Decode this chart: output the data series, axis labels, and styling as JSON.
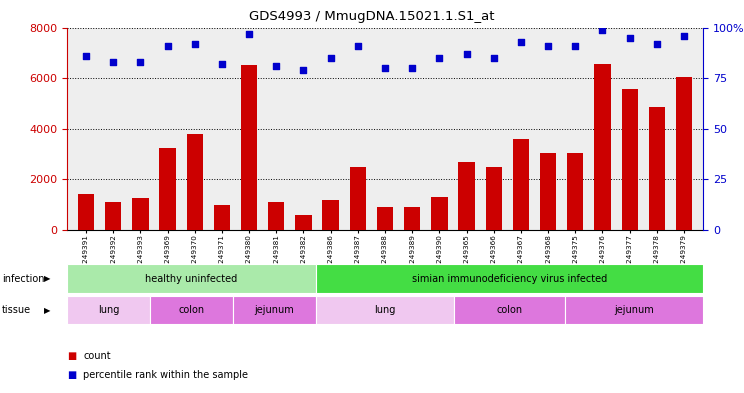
{
  "title": "GDS4993 / MmugDNA.15021.1.S1_at",
  "samples": [
    "GSM1249391",
    "GSM1249392",
    "GSM1249393",
    "GSM1249369",
    "GSM1249370",
    "GSM1249371",
    "GSM1249380",
    "GSM1249381",
    "GSM1249382",
    "GSM1249386",
    "GSM1249387",
    "GSM1249388",
    "GSM1249389",
    "GSM1249390",
    "GSM1249365",
    "GSM1249366",
    "GSM1249367",
    "GSM1249368",
    "GSM1249375",
    "GSM1249376",
    "GSM1249377",
    "GSM1249378",
    "GSM1249379"
  ],
  "counts": [
    1400,
    1100,
    1250,
    3250,
    3800,
    1000,
    6500,
    1100,
    600,
    1200,
    2500,
    900,
    900,
    1300,
    2700,
    2500,
    3600,
    3050,
    3050,
    6550,
    5550,
    4850,
    6050
  ],
  "percentile_ranks": [
    86,
    83,
    83,
    91,
    92,
    82,
    97,
    81,
    79,
    85,
    91,
    80,
    80,
    85,
    87,
    85,
    93,
    91,
    91,
    99,
    95,
    92,
    96
  ],
  "bar_color": "#cc0000",
  "dot_color": "#0000cc",
  "ylim_left": [
    0,
    8000
  ],
  "ylim_right": [
    0,
    100
  ],
  "yticks_left": [
    0,
    2000,
    4000,
    6000,
    8000
  ],
  "yticks_right": [
    0,
    25,
    50,
    75,
    100
  ],
  "infection_groups": [
    {
      "label": "healthy uninfected",
      "start": 0,
      "end": 9,
      "color": "#aaeaaa"
    },
    {
      "label": "simian immunodeficiency virus infected",
      "start": 9,
      "end": 23,
      "color": "#44dd44"
    }
  ],
  "tissue_groups": [
    {
      "label": "lung",
      "start": 0,
      "end": 3,
      "color": "#f0c8f0"
    },
    {
      "label": "colon",
      "start": 3,
      "end": 6,
      "color": "#dd77dd"
    },
    {
      "label": "jejunum",
      "start": 6,
      "end": 9,
      "color": "#dd77dd"
    },
    {
      "label": "lung",
      "start": 9,
      "end": 14,
      "color": "#f0c8f0"
    },
    {
      "label": "colon",
      "start": 14,
      "end": 18,
      "color": "#dd77dd"
    },
    {
      "label": "jejunum",
      "start": 18,
      "end": 23,
      "color": "#dd77dd"
    }
  ],
  "legend_items": [
    {
      "label": "count",
      "color": "#cc0000"
    },
    {
      "label": "percentile rank within the sample",
      "color": "#0000cc"
    }
  ]
}
